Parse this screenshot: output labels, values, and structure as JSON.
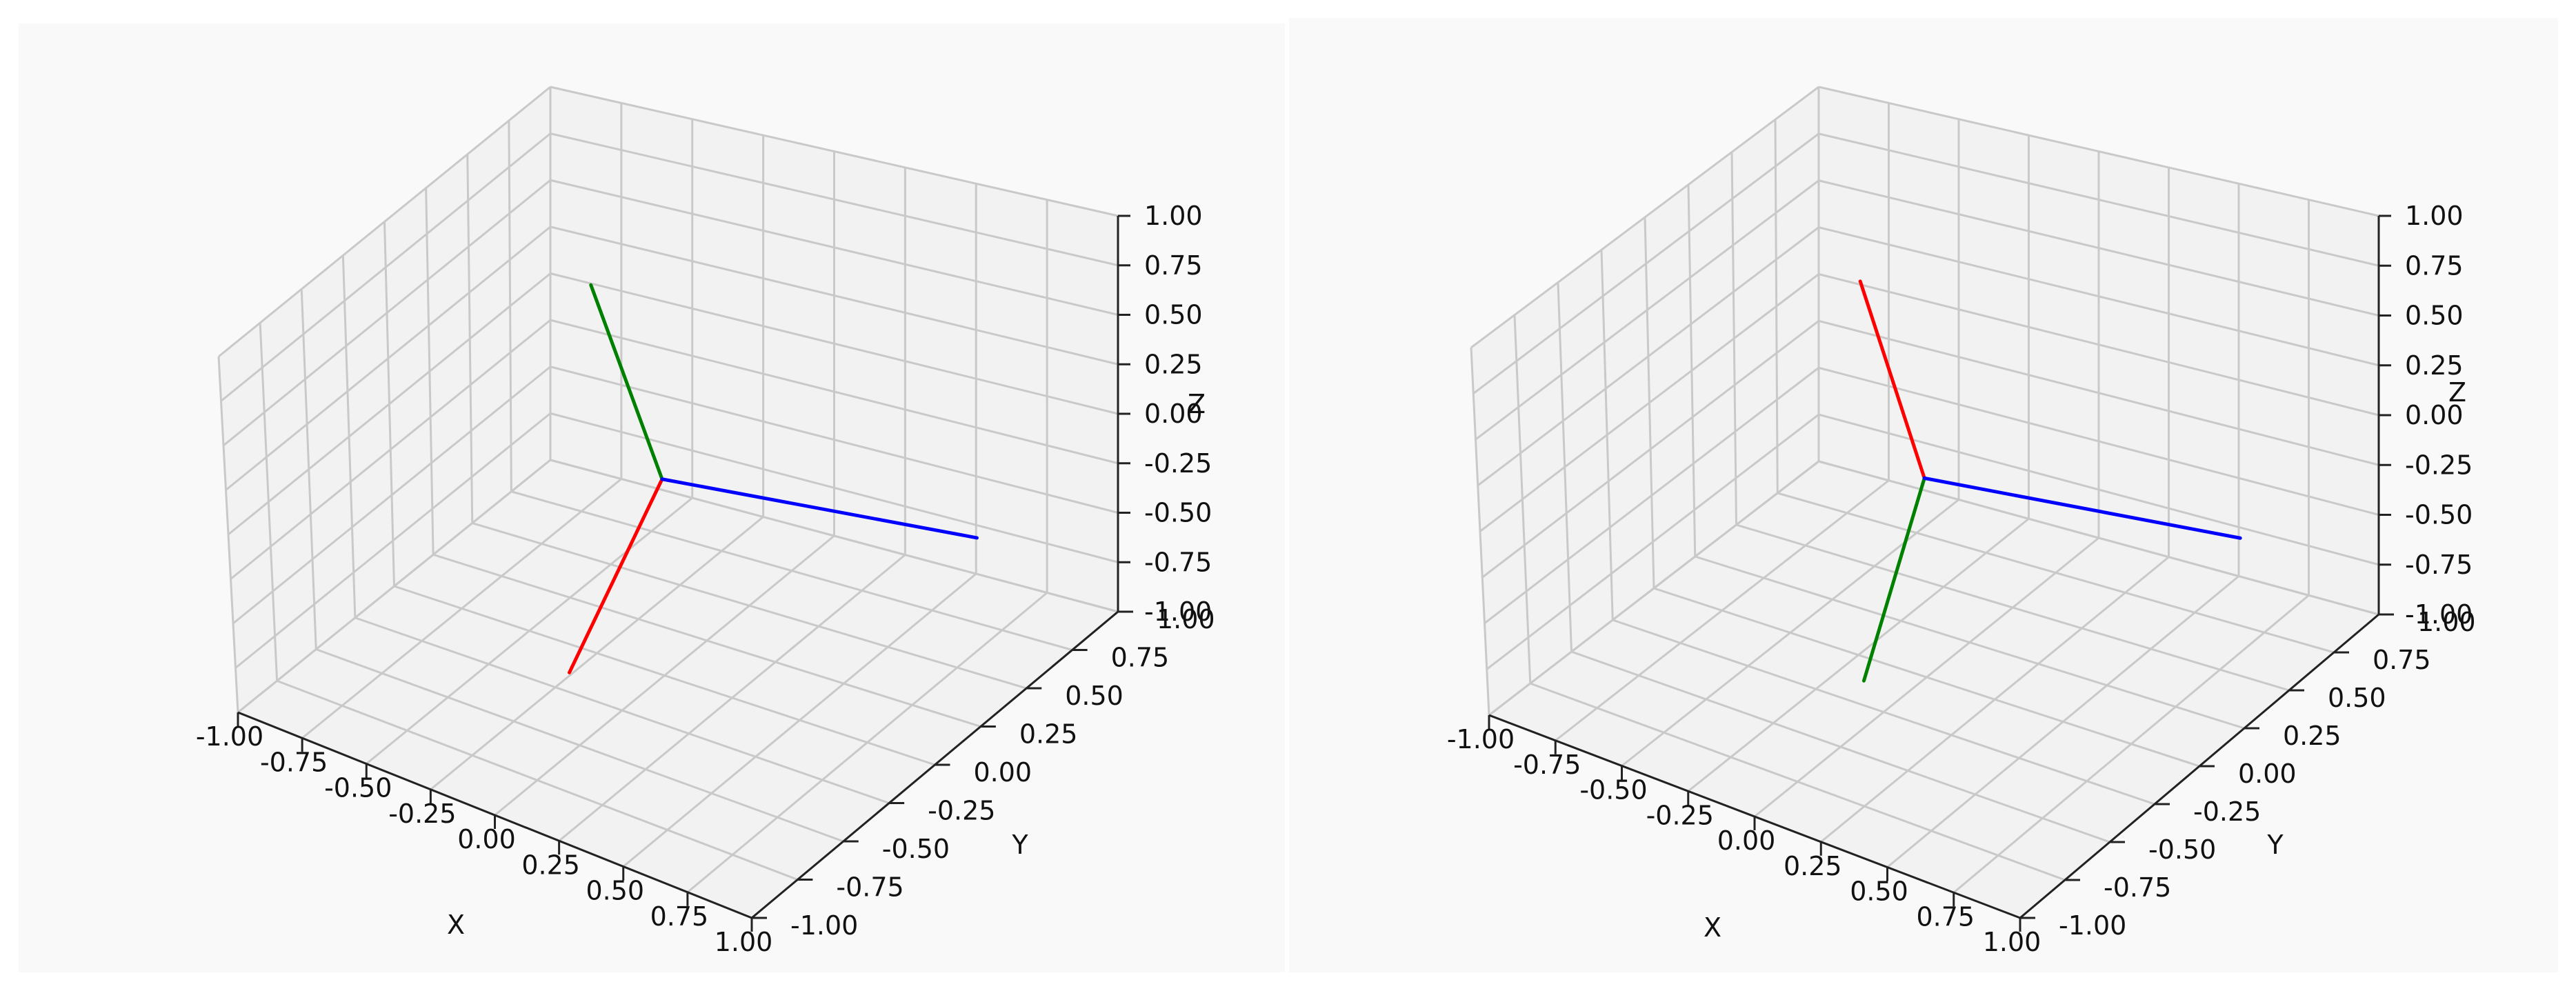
{
  "chart_data": [
    {
      "type": "line",
      "projection": "3d",
      "title": "",
      "xlabel": "X",
      "ylabel": "Y",
      "zlabel": "Z",
      "xlim": [
        -1.0,
        1.0
      ],
      "ylim": [
        -1.0,
        1.0
      ],
      "zlim": [
        -1.0,
        1.0
      ],
      "xticks": [
        "-1.00",
        "-0.75",
        "-0.50",
        "-0.25",
        "0.00",
        "0.25",
        "0.50",
        "0.75",
        "1.00"
      ],
      "yticks": [
        "-1.00",
        "-0.75",
        "-0.50",
        "-0.25",
        "0.00",
        "0.25",
        "0.50",
        "0.75",
        "1.00"
      ],
      "zticks": [
        "-1.00",
        "-0.75",
        "-0.50",
        "-0.25",
        "0.00",
        "0.25",
        "0.50",
        "0.75",
        "1.00"
      ],
      "grid": true,
      "series": [
        {
          "color": "#ff0000",
          "x": [
            0,
            0.26
          ],
          "y": [
            0,
            -0.94
          ],
          "z": [
            0,
            -0.22
          ]
        },
        {
          "color": "#008000",
          "x": [
            0,
            -0.2
          ],
          "y": [
            0,
            -0.08
          ],
          "z": [
            0,
            0.98
          ]
        },
        {
          "color": "#0000ff",
          "x": [
            0,
            0.94
          ],
          "y": [
            0,
            0.32
          ],
          "z": [
            0,
            -0.16
          ]
        }
      ]
    },
    {
      "type": "line",
      "projection": "3d",
      "title": "",
      "xlabel": "X",
      "ylabel": "Y",
      "zlabel": "Z",
      "xlim": [
        -1.0,
        1.0
      ],
      "ylim": [
        -1.0,
        1.0
      ],
      "zlim": [
        -1.0,
        1.0
      ],
      "xticks": [
        "-1.00",
        "-0.75",
        "-0.50",
        "-0.25",
        "0.00",
        "0.25",
        "0.50",
        "0.75",
        "1.00"
      ],
      "yticks": [
        "-1.00",
        "-0.75",
        "-0.50",
        "-0.25",
        "0.00",
        "0.25",
        "0.50",
        "0.75",
        "1.00"
      ],
      "zticks": [
        "-1.00",
        "-0.75",
        "-0.50",
        "-0.25",
        "0.00",
        "0.25",
        "0.50",
        "0.75",
        "1.00"
      ],
      "grid": true,
      "series": [
        {
          "color": "#ff0000",
          "x": [
            0,
            -0.58
          ],
          "y": [
            0,
            0.56
          ],
          "z": [
            0,
            0.42
          ]
        },
        {
          "color": "#008000",
          "x": [
            0,
            0.38
          ],
          "y": [
            0,
            -0.94
          ],
          "z": [
            0,
            -0.22
          ]
        },
        {
          "color": "#0000ff",
          "x": [
            0,
            0.94
          ],
          "y": [
            0,
            0.32
          ],
          "z": [
            0,
            -0.16
          ]
        }
      ]
    }
  ]
}
